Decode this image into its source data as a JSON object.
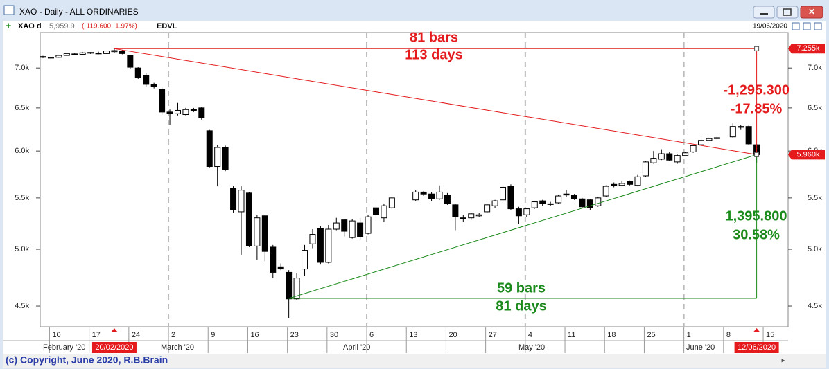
{
  "window": {
    "title": "XAO - Daily - ALL ORDINARIES"
  },
  "toolbar": {
    "symbol": "XAO d",
    "last": "5,959.9",
    "change": "(-119.600 -1.97%)",
    "indicator": "EDVL",
    "date": "19/06/2020"
  },
  "chart_data": {
    "type": "candlestick",
    "log_scale": true,
    "up_color": "#ffffff",
    "down_color": "#000000",
    "categories": [
      null,
      "10",
      null,
      null,
      null,
      null,
      "17",
      null,
      null,
      null,
      null,
      "24",
      null,
      null,
      null,
      null,
      "2",
      null,
      null,
      null,
      null,
      "9",
      null,
      null,
      null,
      null,
      "16",
      null,
      null,
      null,
      null,
      "23",
      null,
      null,
      null,
      null,
      "30",
      null,
      null,
      null,
      null,
      "6",
      null,
      null,
      null,
      null,
      "13",
      null,
      null,
      null,
      null,
      "20",
      null,
      null,
      null,
      null,
      "27",
      null,
      null,
      null,
      null,
      "4",
      null,
      null,
      null,
      null,
      "11",
      null,
      null,
      null,
      null,
      "18",
      null,
      null,
      null,
      null,
      "25",
      null,
      null,
      null,
      null,
      "1",
      null,
      null,
      null,
      null,
      "8",
      null,
      null,
      null,
      null,
      "15"
    ],
    "months": [
      "February '20",
      "March '20",
      "April '20",
      "May '20",
      "June '20"
    ],
    "open": [
      7150,
      7130,
      7140,
      7165,
      7185,
      7180,
      7195,
      7195,
      7190,
      7215,
      7225,
      7170,
      7000,
      6900,
      6790,
      6730,
      6450,
      6430,
      6420,
      6480,
      6500,
      6230,
      5830,
      6040,
      5600,
      5360,
      5550,
      5030,
      5320,
      5020,
      4840,
      4790,
      4560,
      4820,
      5050,
      5200,
      4880,
      5190,
      5280,
      5110,
      5250,
      5150,
      5400,
      5300,
      5400,
      null,
      null,
      5480,
      5560,
      5540,
      5490,
      5530,
      5430,
      5300,
      5300,
      5320,
      5360,
      5420,
      5480,
      5620,
      5390,
      5330,
      5400,
      5470,
      5440,
      5450,
      5540,
      5530,
      5490,
      5480,
      5420,
      5520,
      5640,
      5630,
      5670,
      5630,
      5730,
      5870,
      5910,
      5970,
      5880,
      5950,
      5990,
      6070,
      6120,
      6140,
      null,
      6160,
      6280,
      6280,
      6070,
      null
    ],
    "high": [
      7160,
      7150,
      7175,
      7200,
      7200,
      7210,
      7210,
      7215,
      7230,
      7255.4,
      7235,
      7175,
      7010,
      6930,
      6810,
      6750,
      6480,
      6560,
      6500,
      6500,
      6510,
      6240,
      6070,
      6060,
      5620,
      5620,
      5560,
      5330,
      5330,
      5040,
      4870,
      4810,
      4780,
      5040,
      5190,
      5220,
      5230,
      5300,
      5290,
      5290,
      5300,
      5330,
      5460,
      5440,
      5510,
      null,
      null,
      5580,
      5570,
      5560,
      5630,
      5550,
      5440,
      5330,
      5350,
      5350,
      5440,
      5480,
      5630,
      5640,
      5410,
      5400,
      5470,
      5480,
      5460,
      5530,
      5580,
      5540,
      5500,
      5490,
      5510,
      5630,
      5660,
      5670,
      5680,
      5740,
      5890,
      6000,
      6020,
      5990,
      5960,
      5990,
      6070,
      6170,
      6150,
      6160,
      null,
      6320,
      6300,
      6290,
      6080,
      null
    ],
    "low": [
      7130,
      7115,
      7135,
      7160,
      7170,
      7175,
      7185,
      7180,
      7185,
      7200,
      7180,
      6990,
      6860,
      6760,
      6740,
      6420,
      6300,
      6410,
      6410,
      6450,
      6360,
      5820,
      5620,
      5780,
      5350,
      4950,
      5020,
      4900,
      4890,
      4740,
      4810,
      4402,
      4550,
      4760,
      5010,
      4860,
      4870,
      5180,
      5120,
      5100,
      5090,
      5140,
      5300,
      5260,
      5390,
      null,
      null,
      5470,
      5520,
      5470,
      5480,
      5430,
      5180,
      5260,
      5280,
      5310,
      5350,
      5400,
      5470,
      5380,
      5240,
      5310,
      5390,
      5420,
      5420,
      5440,
      5510,
      5480,
      5400,
      5380,
      5410,
      5510,
      5610,
      5620,
      5630,
      5620,
      5720,
      5860,
      5900,
      5890,
      5860,
      5940,
      5980,
      6060,
      6110,
      6130,
      null,
      6150,
      6240,
      6070,
      5870,
      null
    ],
    "close": [
      7140,
      7140,
      7165,
      7190,
      7180,
      7200,
      7205,
      7190,
      7225,
      7230,
      7190,
      7010,
      6880,
      6790,
      6760,
      6450,
      6430,
      6470,
      6480,
      6470,
      6380,
      5830,
      6040,
      5800,
      5380,
      5580,
      5030,
      5300,
      4980,
      4790,
      4820,
      4560,
      4740,
      4990,
      5140,
      4880,
      5190,
      5250,
      5170,
      5270,
      5120,
      5310,
      5330,
      5420,
      5500,
      null,
      null,
      5560,
      5540,
      5490,
      5560,
      5440,
      5310,
      5300,
      5340,
      5330,
      5430,
      5470,
      5610,
      5390,
      5320,
      5390,
      5460,
      5440,
      5440,
      5520,
      5530,
      5490,
      5410,
      5400,
      5500,
      5620,
      5630,
      5650,
      5640,
      5720,
      5880,
      5920,
      5970,
      5900,
      5950,
      5980,
      6060,
      6120,
      6140,
      6150,
      null,
      6280,
      6270,
      6079.5,
      5959.9,
      null
    ],
    "ylim": [
      4330,
      7476
    ],
    "yticks": [
      {
        "value": 4500,
        "label": "4.5k"
      },
      {
        "value": 5000,
        "label": "5.0k"
      },
      {
        "value": 5500,
        "label": "5.5k"
      },
      {
        "value": 6000,
        "label": "6.0k"
      },
      {
        "value": 6500,
        "label": "6.5k"
      },
      {
        "value": 7000,
        "label": "7.0k"
      }
    ],
    "levels": {
      "peak": {
        "value": 7255.4,
        "label": "7.255k",
        "date": "20/02/2020"
      },
      "last": {
        "value": 5960.1,
        "label": "5.960k",
        "date": "12/06/2020"
      },
      "trough": {
        "value": 4564.1
      }
    },
    "measures": [
      {
        "color": "#e41a1c",
        "bars": "81 bars",
        "days": "113 days",
        "change": "-1,295.300",
        "percent": "-17.85%"
      },
      {
        "color": "#1a8a1a",
        "bars": "59 bars",
        "days": "81 days",
        "change": "1,395.800",
        "percent": "30.58%"
      }
    ]
  },
  "footer": {
    "copyright": "(c) Copyright, June 2020, R.B.Brain"
  }
}
